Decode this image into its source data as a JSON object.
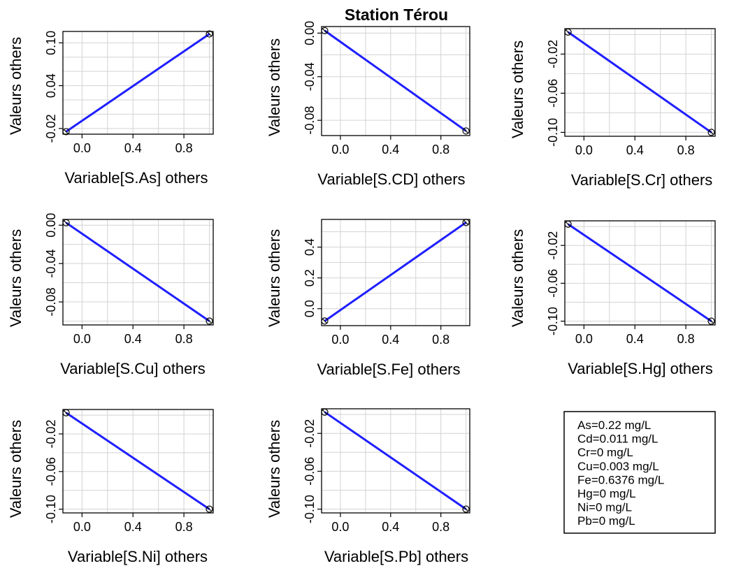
{
  "figure": {
    "title": "Station Térou",
    "line_color": "#1f1fff"
  },
  "chart_data": [
    {
      "type": "line",
      "xlabel": "Variable[S.As] others",
      "ylabel": "Valeurs others",
      "xlim": [
        -0.15,
        1.03
      ],
      "ylim": [
        -0.028,
        0.116
      ],
      "xticks": [
        0.0,
        0.4,
        0.8
      ],
      "xtick_labels": [
        "0.0",
        "0.4",
        "0.8"
      ],
      "yticks": [
        -0.02,
        0.04,
        0.1
      ],
      "ytick_labels": [
        "-0.02",
        "0.04",
        "0.10"
      ],
      "xgrid": [
        0.0,
        0.2,
        0.4,
        0.6,
        0.8,
        1.0
      ],
      "ygrid": [
        -0.02,
        0.0,
        0.02,
        0.04,
        0.06,
        0.08,
        0.1
      ],
      "x": [
        -0.125,
        1.0
      ],
      "y": [
        -0.0245,
        0.1125
      ]
    },
    {
      "type": "line",
      "xlabel": "Variable[S.CD] others",
      "ylabel": "Valeurs others",
      "xlim": [
        -0.15,
        1.03
      ],
      "ylim": [
        -0.094,
        0.006
      ],
      "xticks": [
        0.0,
        0.4,
        0.8
      ],
      "xtick_labels": [
        "0.0",
        "0.4",
        "0.8"
      ],
      "yticks": [
        0.0,
        -0.04,
        -0.08
      ],
      "ytick_labels": [
        "0.00",
        "-0.04",
        "-0.08"
      ],
      "xgrid": [
        0.0,
        0.2,
        0.4,
        0.6,
        0.8,
        1.0
      ],
      "ygrid": [
        0.0,
        -0.02,
        -0.04,
        -0.06,
        -0.08
      ],
      "x": [
        -0.125,
        1.0
      ],
      "y": [
        0.0022,
        -0.0898
      ]
    },
    {
      "type": "line",
      "xlabel": "Variable[S.Cr] others",
      "ylabel": "Valeurs others",
      "xlim": [
        -0.15,
        1.03
      ],
      "ylim": [
        -0.104,
        0.006
      ],
      "xticks": [
        0.0,
        0.4,
        0.8
      ],
      "xtick_labels": [
        "0.0",
        "0.4",
        "0.8"
      ],
      "yticks": [
        -0.02,
        -0.06,
        -0.1
      ],
      "ytick_labels": [
        "-0.02",
        "-0.06",
        "-0.10"
      ],
      "xgrid": [
        0.0,
        0.2,
        0.4,
        0.6,
        0.8,
        1.0
      ],
      "ygrid": [
        0.0,
        -0.02,
        -0.04,
        -0.06,
        -0.08,
        -0.1
      ],
      "x": [
        -0.125,
        1.0
      ],
      "y": [
        0.0025,
        -0.1
      ]
    },
    {
      "type": "line",
      "xlabel": "Variable[S.Cu] others",
      "ylabel": "Valeurs others",
      "xlim": [
        -0.15,
        1.03
      ],
      "ylim": [
        -0.104,
        0.006
      ],
      "xticks": [
        0.0,
        0.4,
        0.8
      ],
      "xtick_labels": [
        "0.0",
        "0.4",
        "0.8"
      ],
      "yticks": [
        0.0,
        -0.04,
        -0.08
      ],
      "ytick_labels": [
        "0.00",
        "-0.04",
        "-0.08"
      ],
      "xgrid": [
        0.0,
        0.2,
        0.4,
        0.6,
        0.8,
        1.0
      ],
      "ygrid": [
        0.0,
        -0.02,
        -0.04,
        -0.06,
        -0.08,
        -0.1
      ],
      "x": [
        -0.125,
        1.0
      ],
      "y": [
        0.0025,
        -0.1
      ]
    },
    {
      "type": "line",
      "xlabel": "Variable[S.Fe] others",
      "ylabel": "Valeurs others",
      "xlim": [
        -0.15,
        1.03
      ],
      "ylim": [
        -0.11,
        0.58
      ],
      "xticks": [
        0.0,
        0.4,
        0.8
      ],
      "xtick_labels": [
        "0.0",
        "0.4",
        "0.8"
      ],
      "yticks": [
        0.0,
        0.2,
        0.4
      ],
      "ytick_labels": [
        "0.0",
        "0.2",
        "0.4"
      ],
      "xgrid": [
        0.0,
        0.2,
        0.4,
        0.6,
        0.8,
        1.0
      ],
      "ygrid": [
        0.0,
        0.1,
        0.2,
        0.3,
        0.4,
        0.5
      ],
      "x": [
        -0.125,
        1.0
      ],
      "y": [
        -0.08,
        0.56
      ]
    },
    {
      "type": "line",
      "xlabel": "Variable[S.Hg] others",
      "ylabel": "Valeurs others",
      "xlim": [
        -0.15,
        1.03
      ],
      "ylim": [
        -0.104,
        0.006
      ],
      "xticks": [
        0.0,
        0.4,
        0.8
      ],
      "xtick_labels": [
        "0.0",
        "0.4",
        "0.8"
      ],
      "yticks": [
        -0.02,
        -0.06,
        -0.1
      ],
      "ytick_labels": [
        "-0.02",
        "-0.06",
        "-0.10"
      ],
      "xgrid": [
        0.0,
        0.2,
        0.4,
        0.6,
        0.8,
        1.0
      ],
      "ygrid": [
        0.0,
        -0.02,
        -0.04,
        -0.06,
        -0.08,
        -0.1
      ],
      "x": [
        -0.125,
        1.0
      ],
      "y": [
        0.0025,
        -0.1
      ]
    },
    {
      "type": "line",
      "xlabel": "Variable[S.Ni] others",
      "ylabel": "Valeurs others",
      "xlim": [
        -0.15,
        1.03
      ],
      "ylim": [
        -0.104,
        0.006
      ],
      "xticks": [
        0.0,
        0.4,
        0.8
      ],
      "xtick_labels": [
        "0.0",
        "0.4",
        "0.8"
      ],
      "yticks": [
        -0.02,
        -0.06,
        -0.1
      ],
      "ytick_labels": [
        "-0.02",
        "-0.06",
        "-0.10"
      ],
      "xgrid": [
        0.0,
        0.2,
        0.4,
        0.6,
        0.8,
        1.0
      ],
      "ygrid": [
        0.0,
        -0.02,
        -0.04,
        -0.06,
        -0.08,
        -0.1
      ],
      "x": [
        -0.125,
        1.0
      ],
      "y": [
        0.0025,
        -0.1
      ]
    },
    {
      "type": "line",
      "xlabel": "Variable[S.Pb] others",
      "ylabel": "Valeurs others",
      "xlim": [
        -0.15,
        1.03
      ],
      "ylim": [
        -0.104,
        0.006
      ],
      "xticks": [
        0.0,
        0.4,
        0.8
      ],
      "xtick_labels": [
        "0.0",
        "0.4",
        "0.8"
      ],
      "yticks": [
        -0.02,
        -0.06,
        -0.1
      ],
      "ytick_labels": [
        "-0.02",
        "-0.06",
        "-0.10"
      ],
      "xgrid": [
        0.0,
        0.2,
        0.4,
        0.6,
        0.8,
        1.0
      ],
      "ygrid": [
        0.0,
        -0.02,
        -0.04,
        -0.06,
        -0.08,
        -0.1
      ],
      "x": [
        -0.125,
        1.0
      ],
      "y": [
        0.0025,
        -0.1
      ]
    }
  ],
  "concentrations": [
    "As=0.22 mg/L",
    "Cd=0.011 mg/L",
    "Cr=0 mg/L",
    "Cu=0.003 mg/L",
    "Fe=0.6376 mg/L",
    "Hg=0 mg/L",
    "Ni=0 mg/L",
    "Pb=0 mg/L"
  ]
}
